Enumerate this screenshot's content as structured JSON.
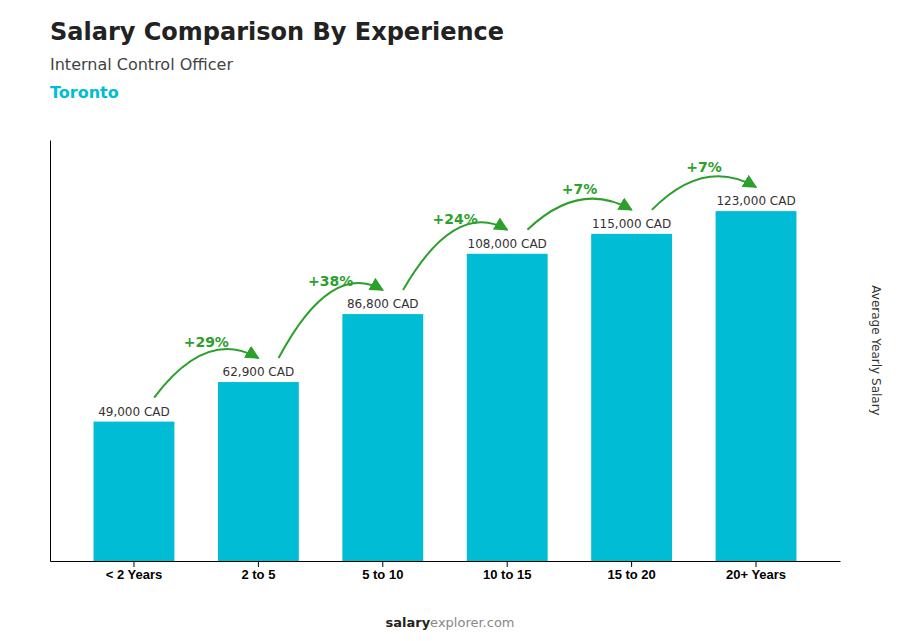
{
  "chart_data": {
    "type": "bar",
    "title": "Salary Comparison By Experience",
    "subtitle": "Internal Control Officer",
    "city": "Toronto",
    "ylabel": "Average Yearly Salary",
    "footer": [
      "salary",
      "explorer.com"
    ],
    "categories": [
      "< 2 Years",
      "2 to 5",
      "5 to 10",
      "10 to 15",
      "15 to 20",
      "20+ Years"
    ],
    "values": [
      49000,
      62900,
      86800,
      108000,
      115000,
      123000
    ],
    "value_labels": [
      "49,000 CAD",
      "62,900 CAD",
      "86,800 CAD",
      "108,000 CAD",
      "115,000 CAD",
      "123,000 CAD"
    ],
    "data_labels": true,
    "annotations": [
      "+29%",
      "+38%",
      "+24%",
      "+7%",
      "+7%"
    ],
    "color": "#00bcd4",
    "ylim": [
      0,
      148000
    ],
    "yticks": [],
    "tick_labels": "x",
    "grid": false
  }
}
